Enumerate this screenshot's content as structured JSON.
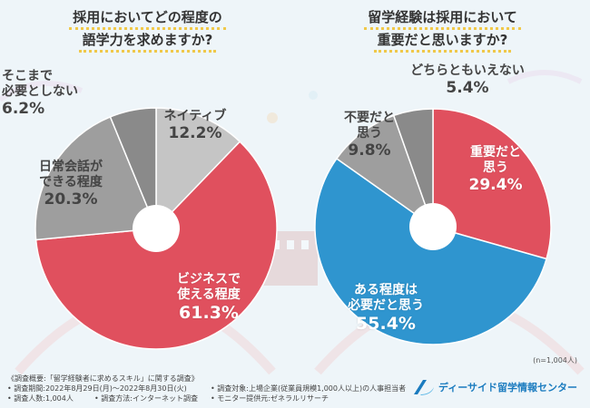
{
  "colors": {
    "red": "#e0505e",
    "blue": "#2f95cf",
    "gray_dark": "#8a8a8a",
    "gray_mid": "#9e9e9e",
    "gray_light": "#c5c5c5",
    "brand": "#1a7bbf"
  },
  "chart_data": [
    {
      "type": "pie",
      "title": "採用においてどの程度の語学力を求めますか?",
      "title_lines": [
        "採用においてどの程度の",
        "語学力を求めますか?"
      ],
      "slices": [
        {
          "label": "ネイティブ",
          "label_lines": [
            "ネイティブ"
          ],
          "value": 12.2,
          "pct_text": "12.2%"
        },
        {
          "label": "ビジネスで使える程度",
          "label_lines": [
            "ビジネスで",
            "使える程度"
          ],
          "value": 61.3,
          "pct_text": "61.3%"
        },
        {
          "label": "日常会話ができる程度",
          "label_lines": [
            "日常会話が",
            "できる程度"
          ],
          "value": 20.3,
          "pct_text": "20.3%"
        },
        {
          "label": "そこまで必要としない",
          "label_lines": [
            "そこまで",
            "必要としない"
          ],
          "value": 6.2,
          "pct_text": "6.2%"
        }
      ]
    },
    {
      "type": "pie",
      "title": "留学経験は採用において重要だと思いますか?",
      "title_lines": [
        "留学経験は採用において",
        "重要だと思いますか?"
      ],
      "slices": [
        {
          "label": "重要だと思う",
          "label_lines": [
            "重要だと",
            "思う"
          ],
          "value": 29.4,
          "pct_text": "29.4%"
        },
        {
          "label": "ある程度は必要だと思う",
          "label_lines": [
            "ある程度は",
            "必要だと思う"
          ],
          "value": 55.4,
          "pct_text": "55.4%"
        },
        {
          "label": "不要だと思う",
          "label_lines": [
            "不要だと",
            "思う"
          ],
          "value": 9.8,
          "pct_text": "9.8%"
        },
        {
          "label": "どちらともいえない",
          "label_lines": [
            "どちらともいえない"
          ],
          "value": 5.4,
          "pct_text": "5.4%"
        }
      ],
      "sample_size": "(n=1,004人)"
    }
  ],
  "footer": {
    "survey_title": "《調査概要:「留学経験者に求めるスキル」に関する調査》",
    "period": "• 調査期間:2022年8月29日(月)〜2022年8月30日(火)",
    "respondents": "• 調査人数:1,004人",
    "method": "• 調査方法:インターネット調査",
    "target": "• 調査対象:上場企業(従業員規模1,000人以上)の人事担当者",
    "provider": "• モニター提供元:ゼネラルリサーチ",
    "logo_text": "ディーサイド留学情報センター"
  }
}
